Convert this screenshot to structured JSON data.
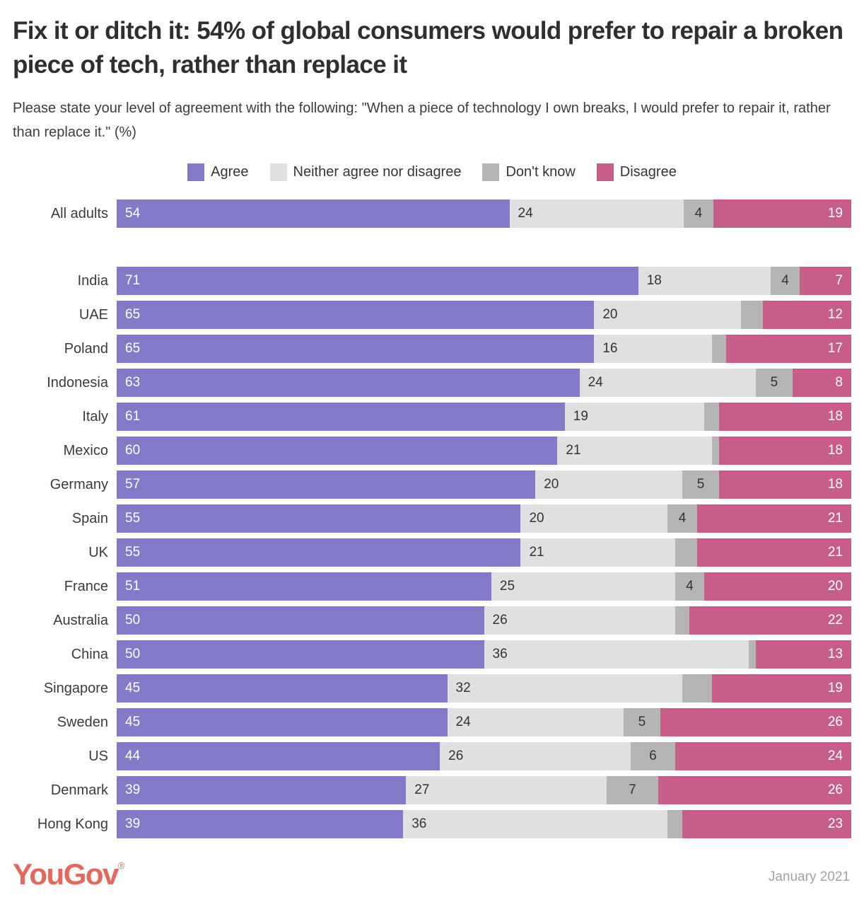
{
  "title": "Fix it or ditch it: 54% of global consumers would prefer to repair a broken piece of tech, rather than replace it",
  "subtitle": "Please state your level of agreement with the following: \"When a piece of technology I own breaks, I would prefer to repair it, rather than replace it.\" (%)",
  "colors": {
    "agree": "#837AC9",
    "neither": "#E0E0E0",
    "dont_know": "#B5B5B5",
    "disagree": "#C75E89",
    "title_text": "#2F2F2F",
    "logo": "#E4685C",
    "footer_date_text": "#A3A3A3"
  },
  "legend": [
    {
      "label": "Agree",
      "color_key": "agree"
    },
    {
      "label": "Neither agree nor disagree",
      "color_key": "neither"
    },
    {
      "label": "Don't know",
      "color_key": "dont_know"
    },
    {
      "label": "Disagree",
      "color_key": "disagree"
    }
  ],
  "chart_data": {
    "type": "bar",
    "orientation": "horizontal",
    "stacked": true,
    "value_unit": "%",
    "xlim": [
      0,
      100
    ],
    "series_names": [
      "Agree",
      "Neither agree nor disagree",
      "Don't know",
      "Disagree"
    ],
    "rows": [
      {
        "label": "All adults",
        "agree": 54,
        "neither": 24,
        "dont_know": 4,
        "disagree": 19,
        "dk_labeled": true
      },
      {
        "label": "India",
        "agree": 71,
        "neither": 18,
        "dont_know": 4,
        "disagree": 7,
        "dk_labeled": true
      },
      {
        "label": "UAE",
        "agree": 65,
        "neither": 20,
        "dont_know": 3,
        "disagree": 12,
        "dk_labeled": false
      },
      {
        "label": "Poland",
        "agree": 65,
        "neither": 16,
        "dont_know": 2,
        "disagree": 17,
        "dk_labeled": false
      },
      {
        "label": "Indonesia",
        "agree": 63,
        "neither": 24,
        "dont_know": 5,
        "disagree": 8,
        "dk_labeled": true
      },
      {
        "label": "Italy",
        "agree": 61,
        "neither": 19,
        "dont_know": 2,
        "disagree": 18,
        "dk_labeled": false
      },
      {
        "label": "Mexico",
        "agree": 60,
        "neither": 21,
        "dont_know": 1,
        "disagree": 18,
        "dk_labeled": false
      },
      {
        "label": "Germany",
        "agree": 57,
        "neither": 20,
        "dont_know": 5,
        "disagree": 18,
        "dk_labeled": true
      },
      {
        "label": "Spain",
        "agree": 55,
        "neither": 20,
        "dont_know": 4,
        "disagree": 21,
        "dk_labeled": true
      },
      {
        "label": "UK",
        "agree": 55,
        "neither": 21,
        "dont_know": 3,
        "disagree": 21,
        "dk_labeled": false
      },
      {
        "label": "France",
        "agree": 51,
        "neither": 25,
        "dont_know": 4,
        "disagree": 20,
        "dk_labeled": true
      },
      {
        "label": "Australia",
        "agree": 50,
        "neither": 26,
        "dont_know": 2,
        "disagree": 22,
        "dk_labeled": false
      },
      {
        "label": "China",
        "agree": 50,
        "neither": 36,
        "dont_know": 1,
        "disagree": 13,
        "dk_labeled": false
      },
      {
        "label": "Singapore",
        "agree": 45,
        "neither": 32,
        "dont_know": 4,
        "disagree": 19,
        "dk_labeled": false
      },
      {
        "label": "Sweden",
        "agree": 45,
        "neither": 24,
        "dont_know": 5,
        "disagree": 26,
        "dk_labeled": true
      },
      {
        "label": "US",
        "agree": 44,
        "neither": 26,
        "dont_know": 6,
        "disagree": 24,
        "dk_labeled": true
      },
      {
        "label": "Denmark",
        "agree": 39,
        "neither": 27,
        "dont_know": 7,
        "disagree": 26,
        "dk_labeled": true
      },
      {
        "label": "Hong Kong",
        "agree": 39,
        "neither": 36,
        "dont_know": 2,
        "disagree": 23,
        "dk_labeled": false
      }
    ]
  },
  "footer": {
    "logo_text": "YouGov",
    "registered_mark": "®",
    "date": "January 2021"
  }
}
